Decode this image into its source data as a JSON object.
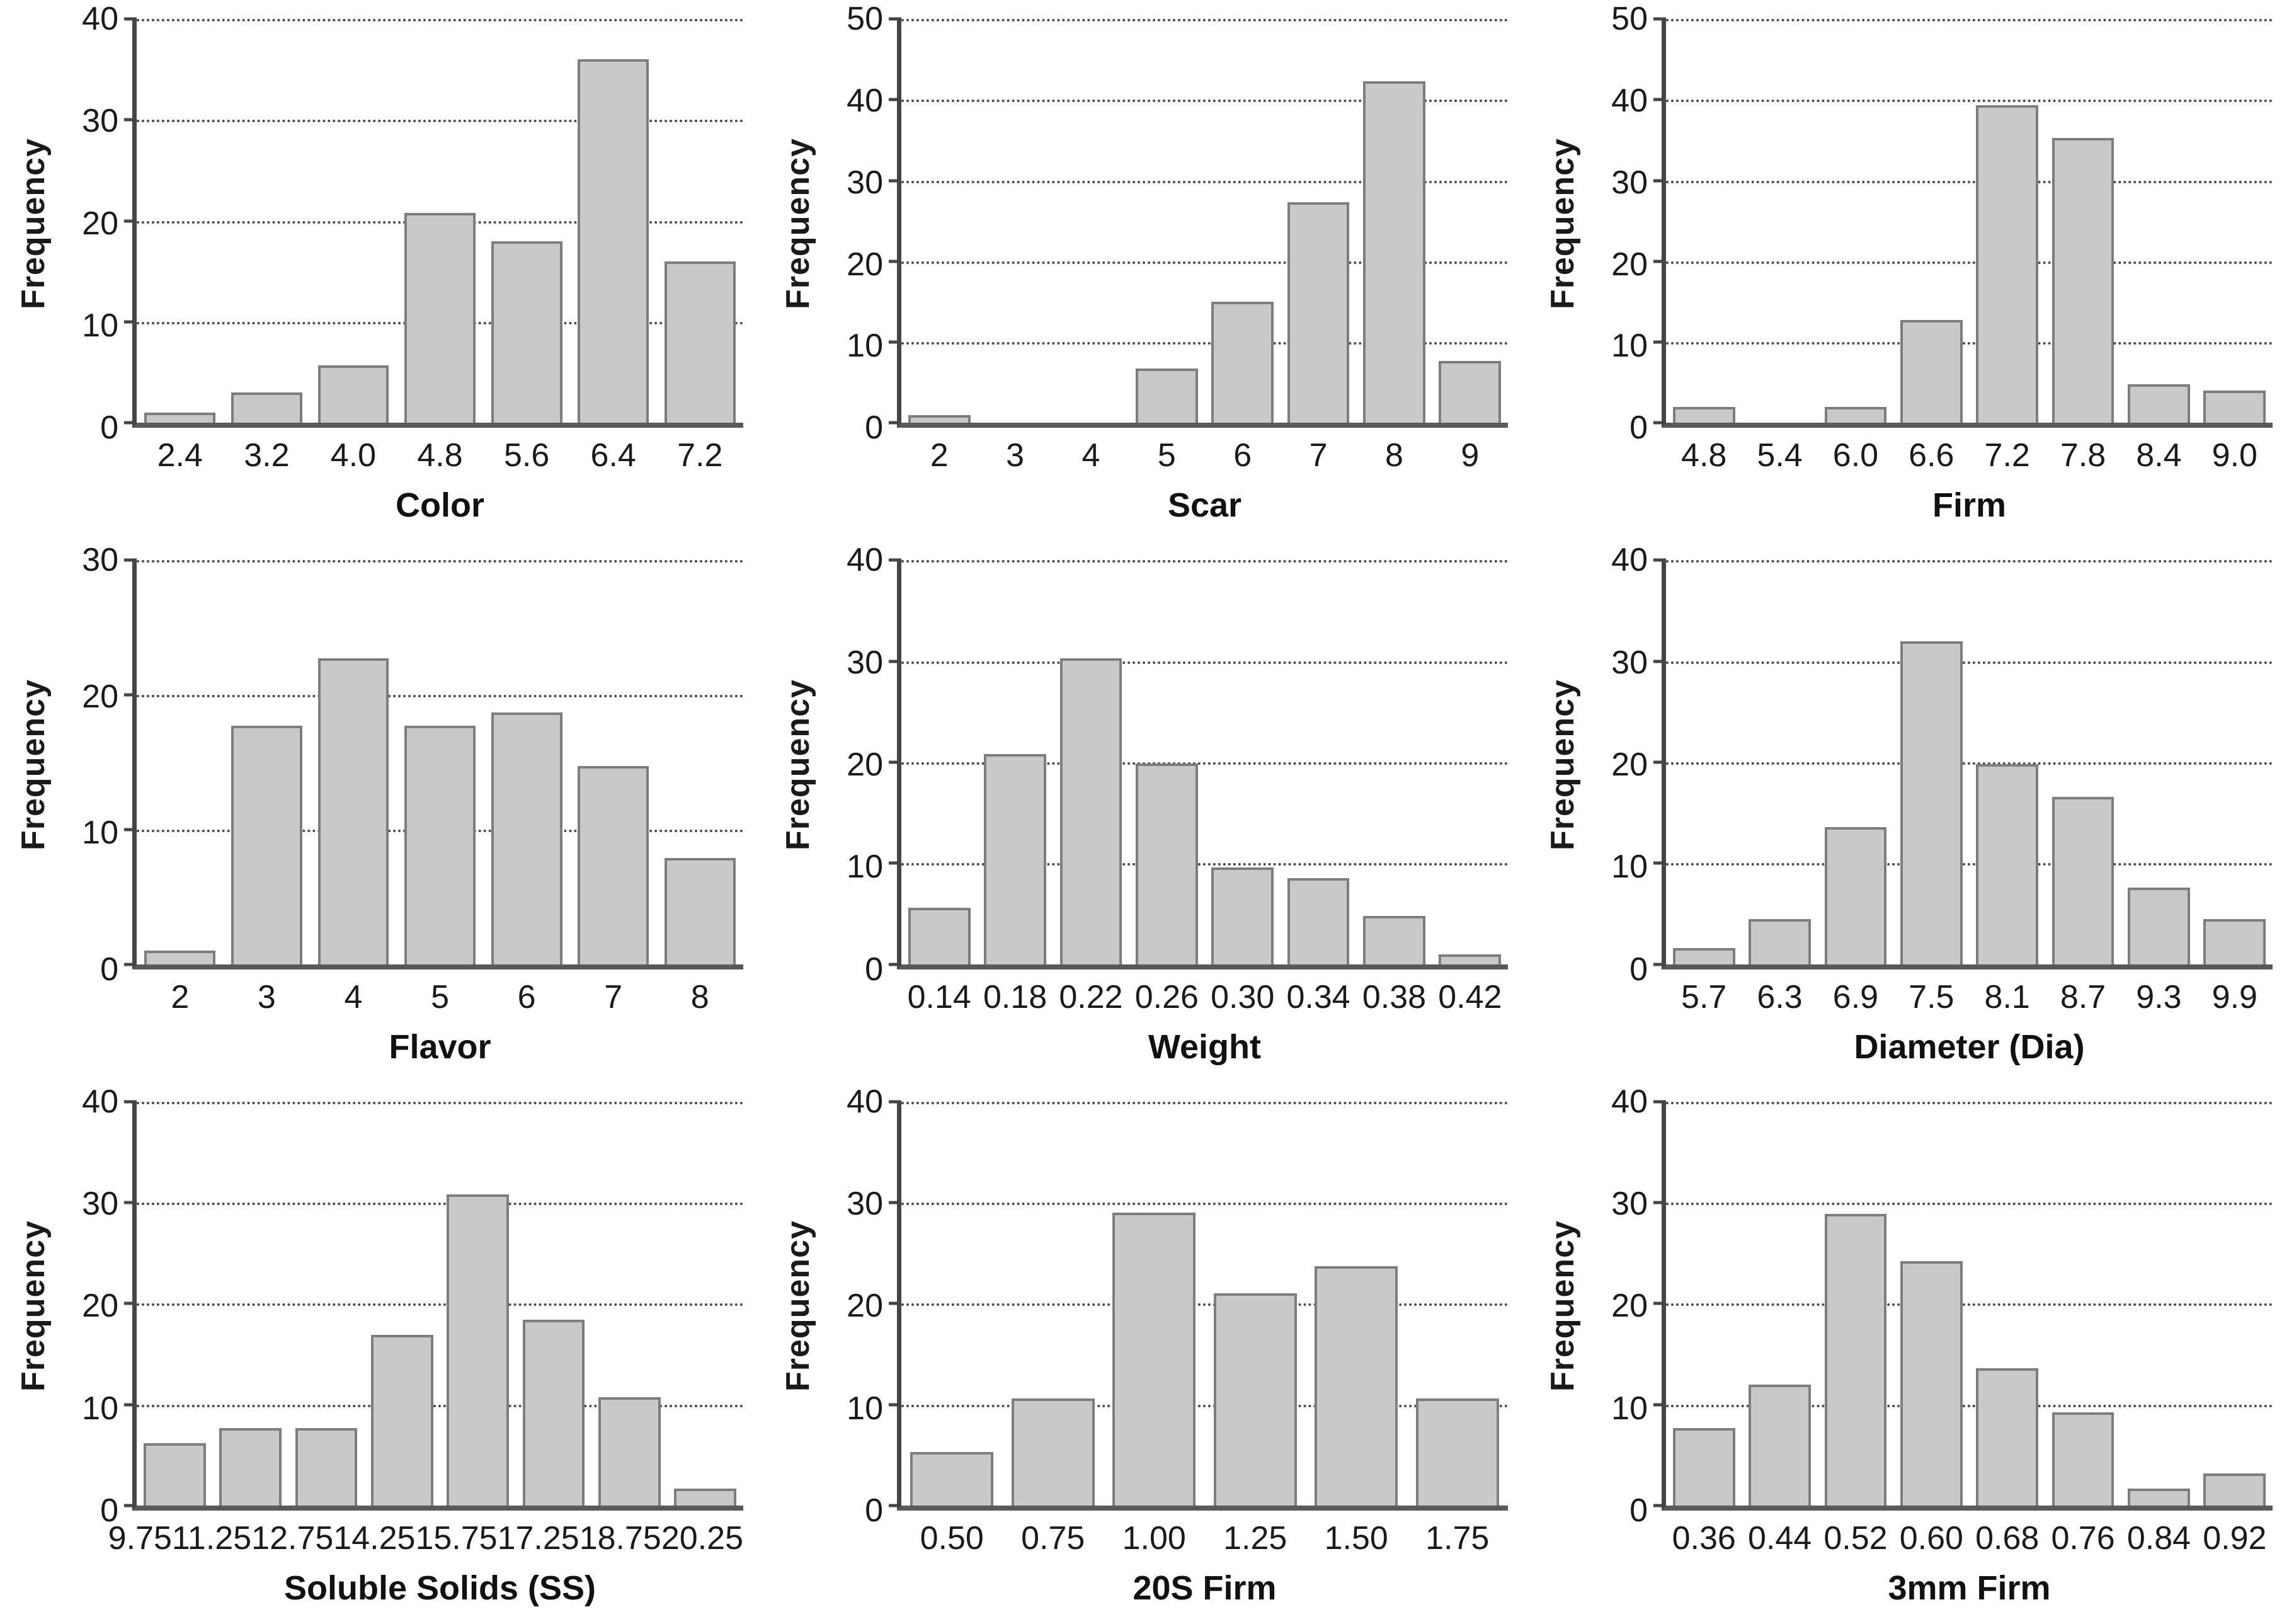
{
  "page": {
    "background": "#ffffff"
  },
  "colors": {
    "bar_fill": "#c9c9c9",
    "bar_border": "#7d7d7d",
    "gridline": "#4a4a4a",
    "axis": "#454545",
    "text": "#1a1a1a"
  },
  "chart_data": [
    {
      "type": "bar",
      "title": "",
      "xlabel": "Color",
      "ylabel": "Frequency",
      "ylim": [
        0,
        40
      ],
      "ytick_step": 10,
      "grid": "dotted horizontal",
      "legend": "none",
      "categories": [
        "2.4",
        "3.2",
        "4.0",
        "4.8",
        "5.6",
        "6.4",
        "7.2"
      ],
      "values": [
        1,
        3,
        5.7,
        20.8,
        18,
        36,
        16
      ]
    },
    {
      "type": "bar",
      "title": "",
      "xlabel": "Scar",
      "ylabel": "Frequency",
      "ylim": [
        0,
        50
      ],
      "ytick_step": 10,
      "grid": "dotted horizontal",
      "legend": "none",
      "categories": [
        "2",
        "3",
        "4",
        "5",
        "6",
        "7",
        "8",
        "9"
      ],
      "values": [
        1,
        0,
        0,
        6.7,
        15,
        27.3,
        42.3,
        7.7
      ]
    },
    {
      "type": "bar",
      "title": "",
      "xlabel": "Firm",
      "ylabel": "Frequency",
      "ylim": [
        0,
        50
      ],
      "ytick_step": 10,
      "grid": "dotted horizontal",
      "legend": "none",
      "categories": [
        "4.8",
        "5.4",
        "6.0",
        "6.6",
        "7.2",
        "7.8",
        "8.4",
        "9.0"
      ],
      "values": [
        2,
        0,
        2,
        12.7,
        39.3,
        35.3,
        4.8,
        4
      ]
    },
    {
      "type": "bar",
      "title": "",
      "xlabel": "Flavor",
      "ylabel": "Frequency",
      "ylim": [
        0,
        30
      ],
      "ytick_step": 10,
      "grid": "dotted horizontal",
      "legend": "none",
      "categories": [
        "2",
        "3",
        "4",
        "5",
        "6",
        "7",
        "8"
      ],
      "values": [
        1,
        17.7,
        22.7,
        17.7,
        18.7,
        14.7,
        7.9
      ]
    },
    {
      "type": "bar",
      "title": "",
      "xlabel": "Weight",
      "ylabel": "Frequency",
      "ylim": [
        0,
        40
      ],
      "ytick_step": 10,
      "grid": "dotted horizontal",
      "legend": "none",
      "categories": [
        "0.14",
        "0.18",
        "0.22",
        "0.26",
        "0.30",
        "0.34",
        "0.38",
        "0.42"
      ],
      "values": [
        5.6,
        20.8,
        30.3,
        19.9,
        9.6,
        8.5,
        4.8,
        1
      ]
    },
    {
      "type": "bar",
      "title": "",
      "xlabel": "Diameter (Dia)",
      "ylabel": "Frequency",
      "ylim": [
        0,
        40
      ],
      "ytick_step": 10,
      "grid": "dotted horizontal",
      "legend": "none",
      "categories": [
        "5.7",
        "6.3",
        "6.9",
        "7.5",
        "8.1",
        "8.7",
        "9.3",
        "9.9"
      ],
      "values": [
        1.6,
        4.5,
        13.6,
        32,
        19.8,
        16.6,
        7.6,
        4.5
      ]
    },
    {
      "type": "bar",
      "title": "",
      "xlabel": "Soluble Solids (SS)",
      "ylabel": "Frequency",
      "ylim": [
        0,
        40
      ],
      "ytick_step": 10,
      "grid": "dotted horizontal",
      "legend": "none",
      "categories": [
        "9.75",
        "11.25",
        "12.75",
        "14.25",
        "15.75",
        "17.25",
        "18.75",
        "20.25"
      ],
      "values": [
        6.2,
        7.7,
        7.7,
        16.9,
        30.8,
        18.4,
        10.7,
        1.7
      ]
    },
    {
      "type": "bar",
      "title": "",
      "xlabel": "20S Firm",
      "ylabel": "Frequency",
      "ylim": [
        0,
        40
      ],
      "ytick_step": 10,
      "grid": "dotted horizontal",
      "legend": "none",
      "categories": [
        "0.50",
        "0.75",
        "1.00",
        "1.25",
        "1.50",
        "1.75"
      ],
      "values": [
        5.3,
        10.6,
        29,
        21,
        23.7,
        10.6
      ]
    },
    {
      "type": "bar",
      "title": "",
      "xlabel": "3mm Firm",
      "ylabel": "Frequency",
      "ylim": [
        0,
        40
      ],
      "ytick_step": 10,
      "grid": "dotted horizontal",
      "legend": "none",
      "categories": [
        "0.36",
        "0.44",
        "0.52",
        "0.60",
        "0.68",
        "0.76",
        "0.84",
        "0.92"
      ],
      "values": [
        7.7,
        12,
        28.9,
        24.2,
        13.6,
        9.2,
        1.7,
        3.2
      ]
    }
  ]
}
